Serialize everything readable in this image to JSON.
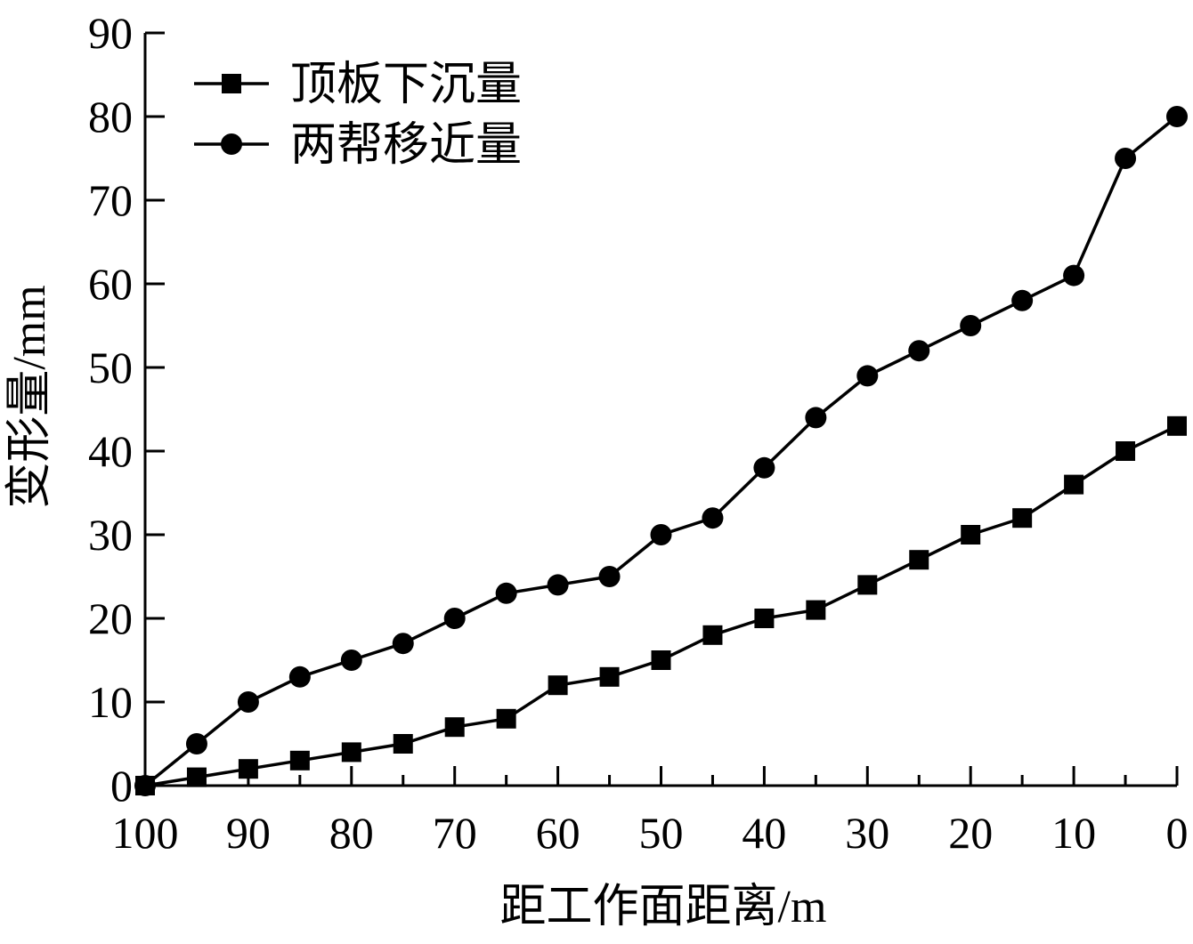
{
  "chart_data": {
    "type": "line",
    "xlabel": "距工作面距离/m",
    "ylabel": "变形量/mm",
    "x_reversed": true,
    "xlim": [
      100,
      0
    ],
    "ylim": [
      0,
      90
    ],
    "xticks": [
      100,
      90,
      80,
      70,
      60,
      50,
      40,
      30,
      20,
      10,
      0
    ],
    "yticks": [
      0,
      10,
      20,
      30,
      40,
      50,
      60,
      70,
      80,
      90
    ],
    "grid": false,
    "legend_position": "top-left",
    "x": [
      100,
      95,
      90,
      85,
      80,
      75,
      70,
      65,
      60,
      55,
      50,
      45,
      40,
      35,
      30,
      25,
      20,
      15,
      10,
      5,
      0
    ],
    "series": [
      {
        "name": "顶板下沉量",
        "marker": "square",
        "color": "#000000",
        "values": [
          0,
          1,
          2,
          3,
          4,
          5,
          7,
          8,
          12,
          13,
          15,
          18,
          20,
          21,
          24,
          27,
          30,
          32,
          36,
          40,
          43
        ]
      },
      {
        "name": "两帮移近量",
        "marker": "circle",
        "color": "#000000",
        "values": [
          0,
          5,
          10,
          13,
          15,
          17,
          20,
          23,
          24,
          25,
          30,
          32,
          38,
          44,
          49,
          52,
          55,
          58,
          61,
          75,
          80
        ]
      }
    ]
  }
}
